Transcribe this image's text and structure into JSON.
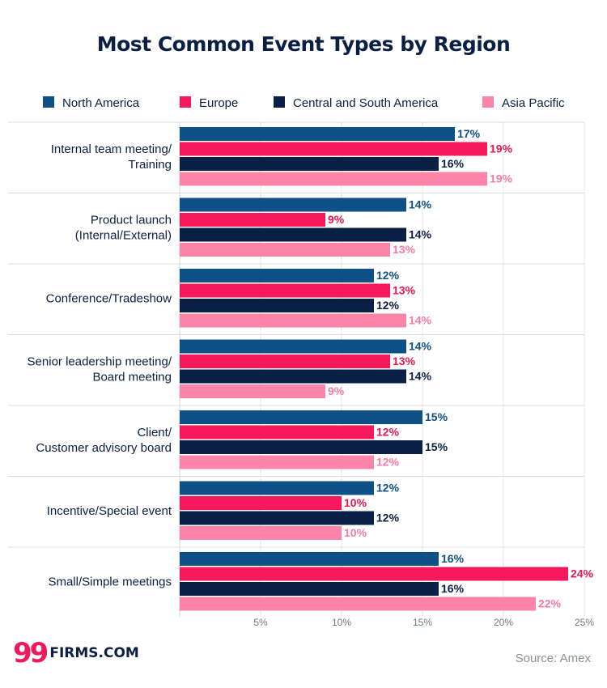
{
  "chart_data": {
    "type": "bar",
    "orientation": "horizontal",
    "title": "Most Common Event Types by Region",
    "categories": [
      [
        "Internal team meeting/",
        "Training"
      ],
      [
        "Product launch",
        "(Internal/External)"
      ],
      [
        "Conference/Tradeshow"
      ],
      [
        "Senior leadership meeting/",
        "Board meeting"
      ],
      [
        "Client/",
        "Customer advisory board"
      ],
      [
        "Incentive/Special event"
      ],
      [
        "Small/Simple meetings"
      ]
    ],
    "series": [
      {
        "name": "North America",
        "color": "#0f5186",
        "label_color": "#0f5186",
        "values": [
          17,
          14,
          12,
          14,
          15,
          12,
          16
        ]
      },
      {
        "name": "Europe",
        "color": "#f5185b",
        "label_color": "#e5184f",
        "values": [
          19,
          9,
          13,
          13,
          12,
          10,
          24
        ]
      },
      {
        "name": "Central and South America",
        "color": "#0a1f44",
        "label_color": "#0a1f44",
        "values": [
          16,
          14,
          12,
          14,
          15,
          12,
          16
        ]
      },
      {
        "name": "Asia Pacific",
        "color": "#fc84a8",
        "label_color": "#f77ba1",
        "values": [
          19,
          13,
          14,
          9,
          12,
          10,
          22
        ]
      }
    ],
    "value_suffix": "%",
    "xlim": [
      0,
      25
    ],
    "xticks": [
      5,
      10,
      15,
      20,
      25
    ],
    "tick_suffix": "%",
    "grid": true,
    "legend_position": "top"
  },
  "brand": {
    "mark": "99",
    "name": "FIRMS.COM"
  },
  "source": "Source: Amex"
}
